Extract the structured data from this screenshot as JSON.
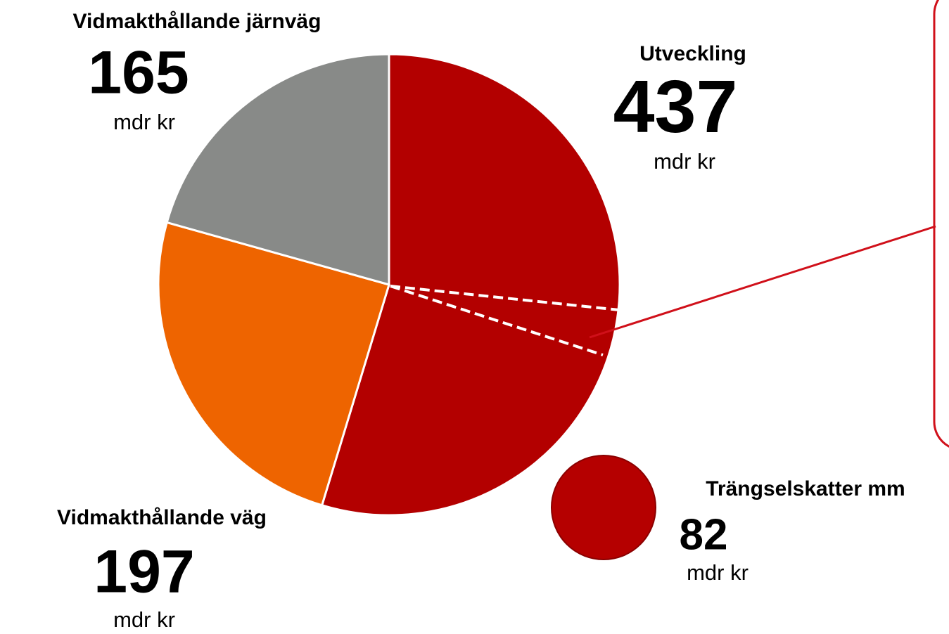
{
  "chart_data": {
    "type": "pie",
    "categories": [
      "Utveckling",
      "Vidmakthållande väg",
      "Vidmakthållande järnväg"
    ],
    "values": [
      437,
      197,
      165
    ],
    "colors": [
      "#b30000",
      "#ee6400",
      "#888a88"
    ],
    "unit": "mdr kr",
    "extra": {
      "name": "Trängselskatter mm",
      "value": 82,
      "color": "#b50000"
    }
  }
}
